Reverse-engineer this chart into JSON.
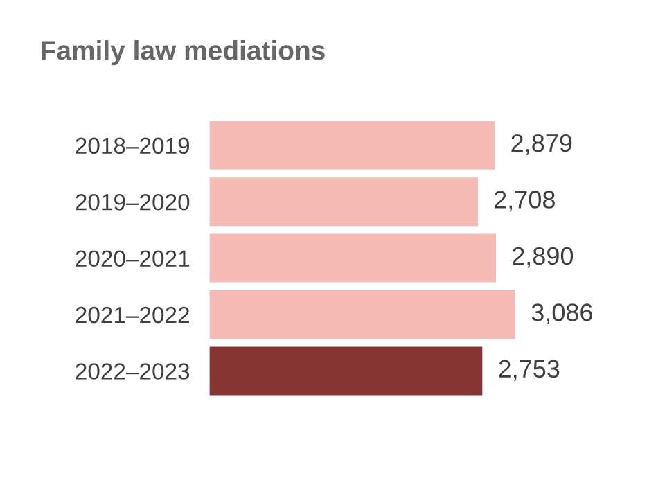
{
  "chart_data": {
    "type": "bar",
    "orientation": "horizontal",
    "title": "Family law mediations",
    "categories": [
      "2018–2019",
      "2019–2020",
      "2020–2021",
      "2021–2022",
      "2022–2023"
    ],
    "values": [
      2879,
      2708,
      2890,
      3086,
      2753
    ],
    "colors": [
      "#f5bbb4",
      "#f5bbb4",
      "#f5bbb4",
      "#f5bbb4",
      "#873533"
    ],
    "value_labels": [
      "2,879",
      "2,708",
      "2,890",
      "3,086",
      "2,753"
    ],
    "grid": false,
    "legend": false
  }
}
